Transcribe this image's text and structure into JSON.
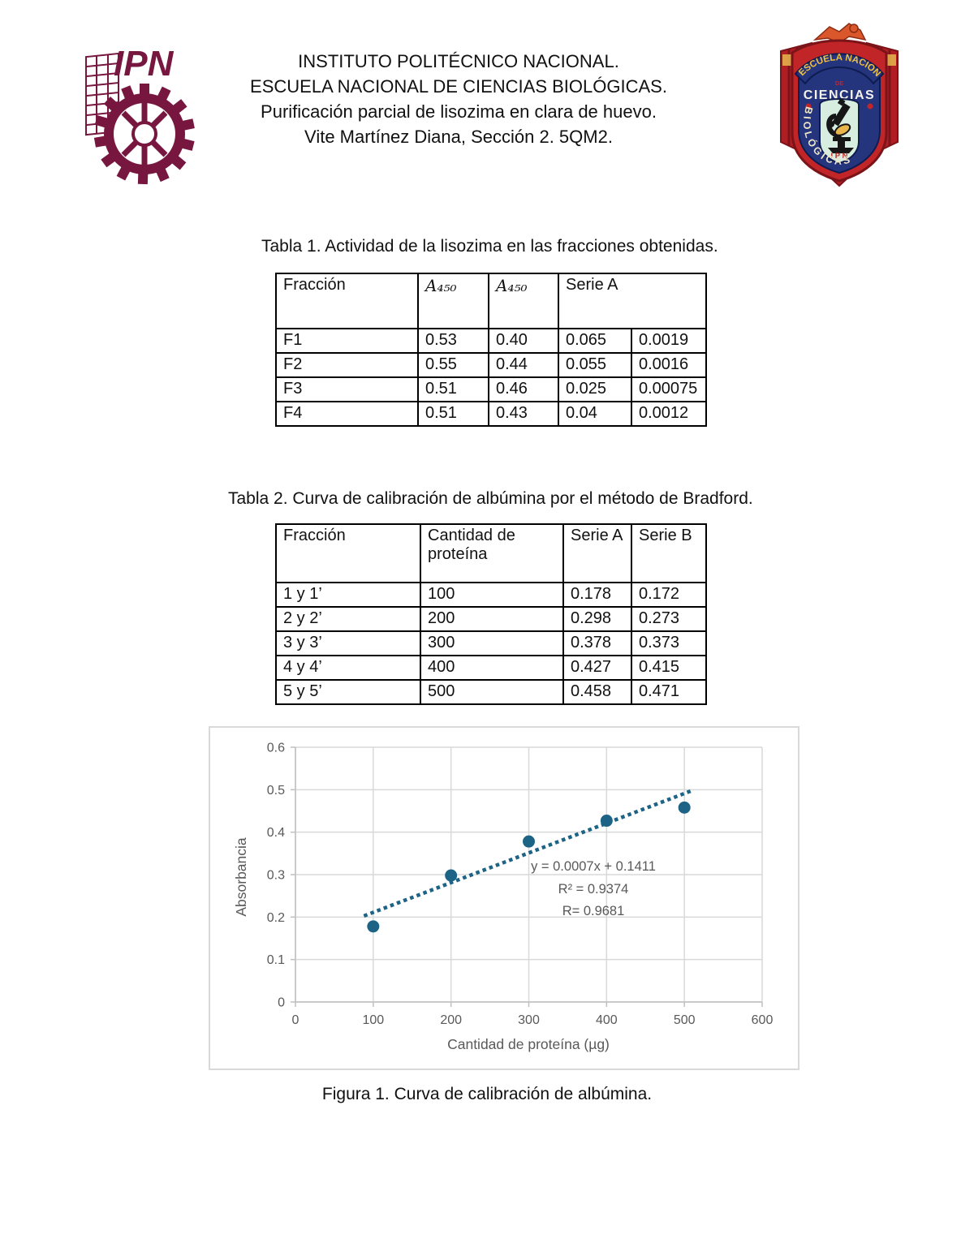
{
  "header": {
    "lines": [
      "INSTITUTO POLITÉCNICO NACIONAL.",
      "ESCUELA NACIONAL DE CIENCIAS BIOLÓGICAS.",
      "Purificación parcial de lisozima en clara de huevo.",
      "Vite Martínez Diana, Sección 2. 5QM2."
    ],
    "ipn_logo": {
      "acronym": "IPN",
      "color": "#77173F"
    },
    "encb_logo": {
      "arc_text": "ESCUELA NACIONAL",
      "de": "DE",
      "ciencias": "CIENCIAS",
      "biologicas": "B I O L Ó G I C A S",
      "ipn": "I P N",
      "red": "#C22528",
      "blue": "#24357E",
      "mint": "#D7EDDF"
    }
  },
  "tables": {
    "tabla1": {
      "caption": "Tabla 1. Actividad de la lisozima en las fracciones obtenidas.",
      "headers": [
        {
          "label": "Fracción",
          "colspan": 1,
          "math": false
        },
        {
          "label": "A₄₅₀",
          "colspan": 1,
          "math": true
        },
        {
          "label": "A₄₅₀",
          "colspan": 1,
          "math": true
        },
        {
          "label": "Serie A",
          "colspan": 2,
          "math": false
        }
      ],
      "rows": [
        [
          "F1",
          "0.53",
          "0.40",
          "0.065",
          "0.0019"
        ],
        [
          "F2",
          "0.55",
          "0.44",
          "0.055",
          "0.0016"
        ],
        [
          "F3",
          "0.51",
          "0.46",
          "0.025",
          "0.00075"
        ],
        [
          "F4",
          "0.51",
          "0.43",
          "0.04",
          "0.0012"
        ]
      ]
    },
    "tabla2": {
      "caption": "Tabla 2. Curva de calibración de albúmina por el método de Bradford.",
      "headers": [
        {
          "label": "Fracción",
          "colspan": 1,
          "math": false
        },
        {
          "label": "Cantidad de proteína",
          "colspan": 1,
          "math": false
        },
        {
          "label": "Serie A",
          "colspan": 1,
          "math": false
        },
        {
          "label": "Serie B",
          "colspan": 1,
          "math": false
        }
      ],
      "rows": [
        [
          "1 y 1’",
          "100",
          "0.178",
          "0.172"
        ],
        [
          "2 y 2’",
          "200",
          "0.298",
          "0.273"
        ],
        [
          "3 y 3’",
          "300",
          "0.378",
          "0.373"
        ],
        [
          "4 y 4’",
          "400",
          "0.427",
          "0.415"
        ],
        [
          "5 y 5’",
          "500",
          "0.458",
          "0.471"
        ]
      ]
    }
  },
  "figure": {
    "caption": "Figura 1. Curva de calibración de albúmina."
  },
  "chart_data": {
    "type": "scatter",
    "series_name": "Serie A",
    "x": [
      100,
      200,
      300,
      400,
      500
    ],
    "values": [
      0.178,
      0.298,
      0.378,
      0.427,
      0.458
    ],
    "trendline": {
      "slope": 0.0007,
      "intercept": 0.1411,
      "x_start": 88,
      "x_end": 512,
      "style": "dotted"
    },
    "annotation": [
      "y = 0.0007x + 0.1411",
      "R² = 0.9374",
      "R= 0.9681"
    ],
    "xlabel": "Cantidad de proteína (µg)",
    "ylabel": "Absorbancia",
    "xlim": [
      0,
      600
    ],
    "ylim": [
      0,
      0.6
    ],
    "x_ticks": [
      0,
      100,
      200,
      300,
      400,
      500,
      600
    ],
    "y_ticks": [
      0,
      0.1,
      0.2,
      0.3,
      0.4,
      0.5,
      0.6
    ],
    "grid": true,
    "legend": "none",
    "point_color": "#1D6385",
    "grid_color": "#D9D9D9",
    "axis_color": "#BFBFBF",
    "label_color": "#595959"
  }
}
